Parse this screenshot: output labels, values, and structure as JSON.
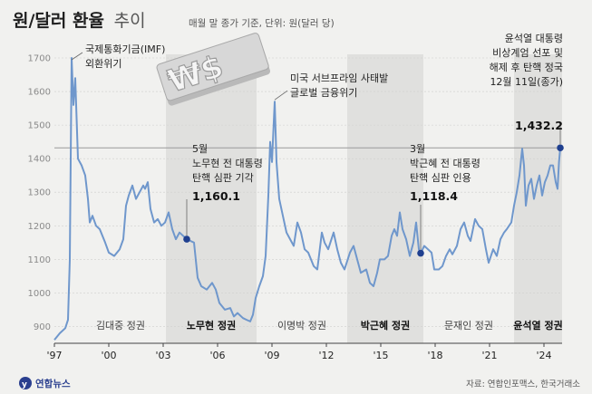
{
  "header": {
    "title": "원/달러 환율",
    "title_suffix": "추이",
    "subtitle": "매월 말 종가 기준, 단위: 원(달러 당)"
  },
  "footer": {
    "source": "자료: 연합인포맥스, 한국거래소",
    "logo_text": "연합뉴스"
  },
  "colors": {
    "line": "#6f97cc",
    "marker": "#1f3f8f",
    "shade": "#e0e0de",
    "background": "#f1f1ef"
  },
  "chart_data": {
    "type": "line",
    "title": "원/달러 환율 추이",
    "ylim": [
      850,
      1700
    ],
    "yticks": [
      900,
      1000,
      1100,
      1200,
      1300,
      1400,
      1500,
      1600,
      1700
    ],
    "xlim": [
      1997.0,
      2025.0
    ],
    "xticks": [
      {
        "x": 1997.0,
        "label": "'97"
      },
      {
        "x": 2000.0,
        "label": "'00"
      },
      {
        "x": 2003.0,
        "label": "'03"
      },
      {
        "x": 2006.0,
        "label": "'06"
      },
      {
        "x": 2009.0,
        "label": "'09"
      },
      {
        "x": 2012.0,
        "label": "'12"
      },
      {
        "x": 2015.0,
        "label": "'15"
      },
      {
        "x": 2018.0,
        "label": "'18"
      },
      {
        "x": 2021.0,
        "label": "'21"
      },
      {
        "x": 2024.0,
        "label": "'24"
      }
    ],
    "reference_line": 1432.2,
    "eras": [
      {
        "label": "김대중 정권",
        "start": 1998.15,
        "end": 2003.15,
        "shaded": false,
        "bold": false
      },
      {
        "label": "노무현 정권",
        "start": 2003.15,
        "end": 2008.15,
        "shaded": true,
        "bold": true
      },
      {
        "label": "이명박 정권",
        "start": 2008.15,
        "end": 2013.15,
        "shaded": false,
        "bold": false
      },
      {
        "label": "박근혜 정권",
        "start": 2013.15,
        "end": 2017.35,
        "shaded": true,
        "bold": true
      },
      {
        "label": "문재인 정권",
        "start": 2017.35,
        "end": 2022.35,
        "shaded": false,
        "bold": false
      },
      {
        "label": "윤석열 정권",
        "start": 2022.35,
        "end": 2025.0,
        "shaded": true,
        "bold": true
      }
    ],
    "series": [
      {
        "values": [
          [
            1997.0,
            860
          ],
          [
            1997.3,
            880
          ],
          [
            1997.6,
            895
          ],
          [
            1997.75,
            920
          ],
          [
            1997.85,
            1100
          ],
          [
            1997.95,
            1700
          ],
          [
            1998.05,
            1560
          ],
          [
            1998.15,
            1640
          ],
          [
            1998.3,
            1400
          ],
          [
            1998.5,
            1380
          ],
          [
            1998.7,
            1350
          ],
          [
            1998.85,
            1280
          ],
          [
            1998.95,
            1210
          ],
          [
            1999.1,
            1230
          ],
          [
            1999.3,
            1200
          ],
          [
            1999.5,
            1190
          ],
          [
            1999.8,
            1150
          ],
          [
            2000.0,
            1120
          ],
          [
            2000.3,
            1110
          ],
          [
            2000.6,
            1130
          ],
          [
            2000.8,
            1160
          ],
          [
            2000.95,
            1260
          ],
          [
            2001.1,
            1290
          ],
          [
            2001.3,
            1320
          ],
          [
            2001.5,
            1280
          ],
          [
            2001.7,
            1300
          ],
          [
            2001.9,
            1320
          ],
          [
            2002.0,
            1310
          ],
          [
            2002.15,
            1330
          ],
          [
            2002.3,
            1250
          ],
          [
            2002.5,
            1210
          ],
          [
            2002.7,
            1220
          ],
          [
            2002.9,
            1200
          ],
          [
            2003.1,
            1210
          ],
          [
            2003.3,
            1240
          ],
          [
            2003.5,
            1190
          ],
          [
            2003.7,
            1160
          ],
          [
            2003.9,
            1180
          ],
          [
            2004.1,
            1170
          ],
          [
            2004.3,
            1160
          ],
          [
            2004.5,
            1155
          ],
          [
            2004.7,
            1150
          ],
          [
            2004.9,
            1045
          ],
          [
            2005.1,
            1020
          ],
          [
            2005.4,
            1010
          ],
          [
            2005.7,
            1030
          ],
          [
            2005.9,
            1010
          ],
          [
            2006.1,
            970
          ],
          [
            2006.4,
            950
          ],
          [
            2006.7,
            955
          ],
          [
            2006.9,
            930
          ],
          [
            2007.1,
            940
          ],
          [
            2007.4,
            925
          ],
          [
            2007.6,
            920
          ],
          [
            2007.8,
            915
          ],
          [
            2007.95,
            935
          ],
          [
            2008.1,
            985
          ],
          [
            2008.3,
            1020
          ],
          [
            2008.5,
            1050
          ],
          [
            2008.65,
            1110
          ],
          [
            2008.8,
            1290
          ],
          [
            2008.9,
            1450
          ],
          [
            2009.0,
            1390
          ],
          [
            2009.15,
            1570
          ],
          [
            2009.25,
            1390
          ],
          [
            2009.4,
            1280
          ],
          [
            2009.6,
            1230
          ],
          [
            2009.8,
            1180
          ],
          [
            2010.0,
            1160
          ],
          [
            2010.2,
            1140
          ],
          [
            2010.4,
            1210
          ],
          [
            2010.6,
            1180
          ],
          [
            2010.8,
            1130
          ],
          [
            2011.0,
            1120
          ],
          [
            2011.3,
            1080
          ],
          [
            2011.5,
            1070
          ],
          [
            2011.75,
            1180
          ],
          [
            2011.9,
            1150
          ],
          [
            2012.1,
            1130
          ],
          [
            2012.4,
            1180
          ],
          [
            2012.6,
            1130
          ],
          [
            2012.8,
            1090
          ],
          [
            2013.0,
            1070
          ],
          [
            2013.3,
            1120
          ],
          [
            2013.5,
            1140
          ],
          [
            2013.7,
            1100
          ],
          [
            2013.9,
            1060
          ],
          [
            2014.2,
            1070
          ],
          [
            2014.4,
            1030
          ],
          [
            2014.6,
            1020
          ],
          [
            2014.8,
            1060
          ],
          [
            2014.95,
            1100
          ],
          [
            2015.2,
            1100
          ],
          [
            2015.4,
            1110
          ],
          [
            2015.6,
            1170
          ],
          [
            2015.75,
            1190
          ],
          [
            2015.9,
            1170
          ],
          [
            2016.05,
            1240
          ],
          [
            2016.2,
            1190
          ],
          [
            2016.4,
            1160
          ],
          [
            2016.6,
            1110
          ],
          [
            2016.8,
            1150
          ],
          [
            2016.95,
            1210
          ],
          [
            2017.1,
            1130
          ],
          [
            2017.2,
            1118.4
          ],
          [
            2017.4,
            1140
          ],
          [
            2017.6,
            1130
          ],
          [
            2017.8,
            1120
          ],
          [
            2017.95,
            1070
          ],
          [
            2018.2,
            1070
          ],
          [
            2018.4,
            1080
          ],
          [
            2018.6,
            1110
          ],
          [
            2018.8,
            1130
          ],
          [
            2018.95,
            1115
          ],
          [
            2019.2,
            1140
          ],
          [
            2019.4,
            1190
          ],
          [
            2019.6,
            1210
          ],
          [
            2019.8,
            1170
          ],
          [
            2019.95,
            1155
          ],
          [
            2020.2,
            1220
          ],
          [
            2020.4,
            1200
          ],
          [
            2020.6,
            1190
          ],
          [
            2020.8,
            1130
          ],
          [
            2020.95,
            1090
          ],
          [
            2021.2,
            1130
          ],
          [
            2021.4,
            1110
          ],
          [
            2021.6,
            1160
          ],
          [
            2021.8,
            1180
          ],
          [
            2021.95,
            1190
          ],
          [
            2022.2,
            1210
          ],
          [
            2022.35,
            1260
          ],
          [
            2022.5,
            1300
          ],
          [
            2022.65,
            1350
          ],
          [
            2022.8,
            1430
          ],
          [
            2022.9,
            1380
          ],
          [
            2023.0,
            1260
          ],
          [
            2023.15,
            1320
          ],
          [
            2023.3,
            1340
          ],
          [
            2023.45,
            1280
          ],
          [
            2023.6,
            1320
          ],
          [
            2023.75,
            1350
          ],
          [
            2023.9,
            1290
          ],
          [
            2024.05,
            1330
          ],
          [
            2024.2,
            1350
          ],
          [
            2024.35,
            1380
          ],
          [
            2024.5,
            1380
          ],
          [
            2024.65,
            1330
          ],
          [
            2024.75,
            1310
          ],
          [
            2024.83,
            1390
          ],
          [
            2024.9,
            1432.2
          ]
        ]
      }
    ],
    "annotations": [
      {
        "x": 1997.95,
        "y": 1700,
        "lines": [
          "국제통화기금(IMF)",
          "외환위기"
        ],
        "value": "",
        "marker": false
      },
      {
        "x": 2009.15,
        "y": 1570,
        "lines": [
          "미국 서브프라임 사태발",
          "글로벌 금융위기"
        ],
        "value": "",
        "marker": false
      },
      {
        "x": 2004.3,
        "y": 1160.1,
        "lines": [
          "5월",
          "노무현 전 대통령",
          "탄핵 심판 기각"
        ],
        "value": "1,160.1",
        "marker": true
      },
      {
        "x": 2017.2,
        "y": 1118.4,
        "lines": [
          "3월",
          "박근혜 전 대통령",
          "탄핵 심판 인용"
        ],
        "value": "1,118.4",
        "marker": true
      },
      {
        "x": 2024.9,
        "y": 1432.2,
        "lines": [
          "윤석열 대통령",
          "비상계엄 선포 및",
          "해제 후 탄핵 정국",
          "12월 11일(종가)"
        ],
        "value": "1,432.2",
        "marker": true
      }
    ]
  }
}
